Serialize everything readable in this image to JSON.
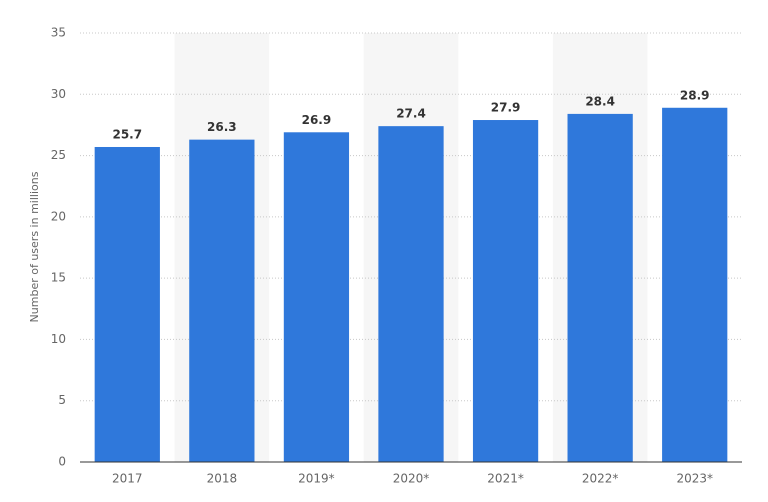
{
  "chart_data": {
    "type": "bar",
    "y_label": "Number of users in millions",
    "categories": [
      "2017",
      "2018",
      "2019*",
      "2020*",
      "2021*",
      "2022*",
      "2023*"
    ],
    "values": [
      25.7,
      26.3,
      26.9,
      27.4,
      27.9,
      28.4,
      28.9
    ],
    "color": "#2f78db",
    "ylim": [
      0,
      35
    ],
    "yticks": [
      0,
      5,
      10,
      15,
      20,
      25,
      30,
      35
    ],
    "grid": true
  }
}
